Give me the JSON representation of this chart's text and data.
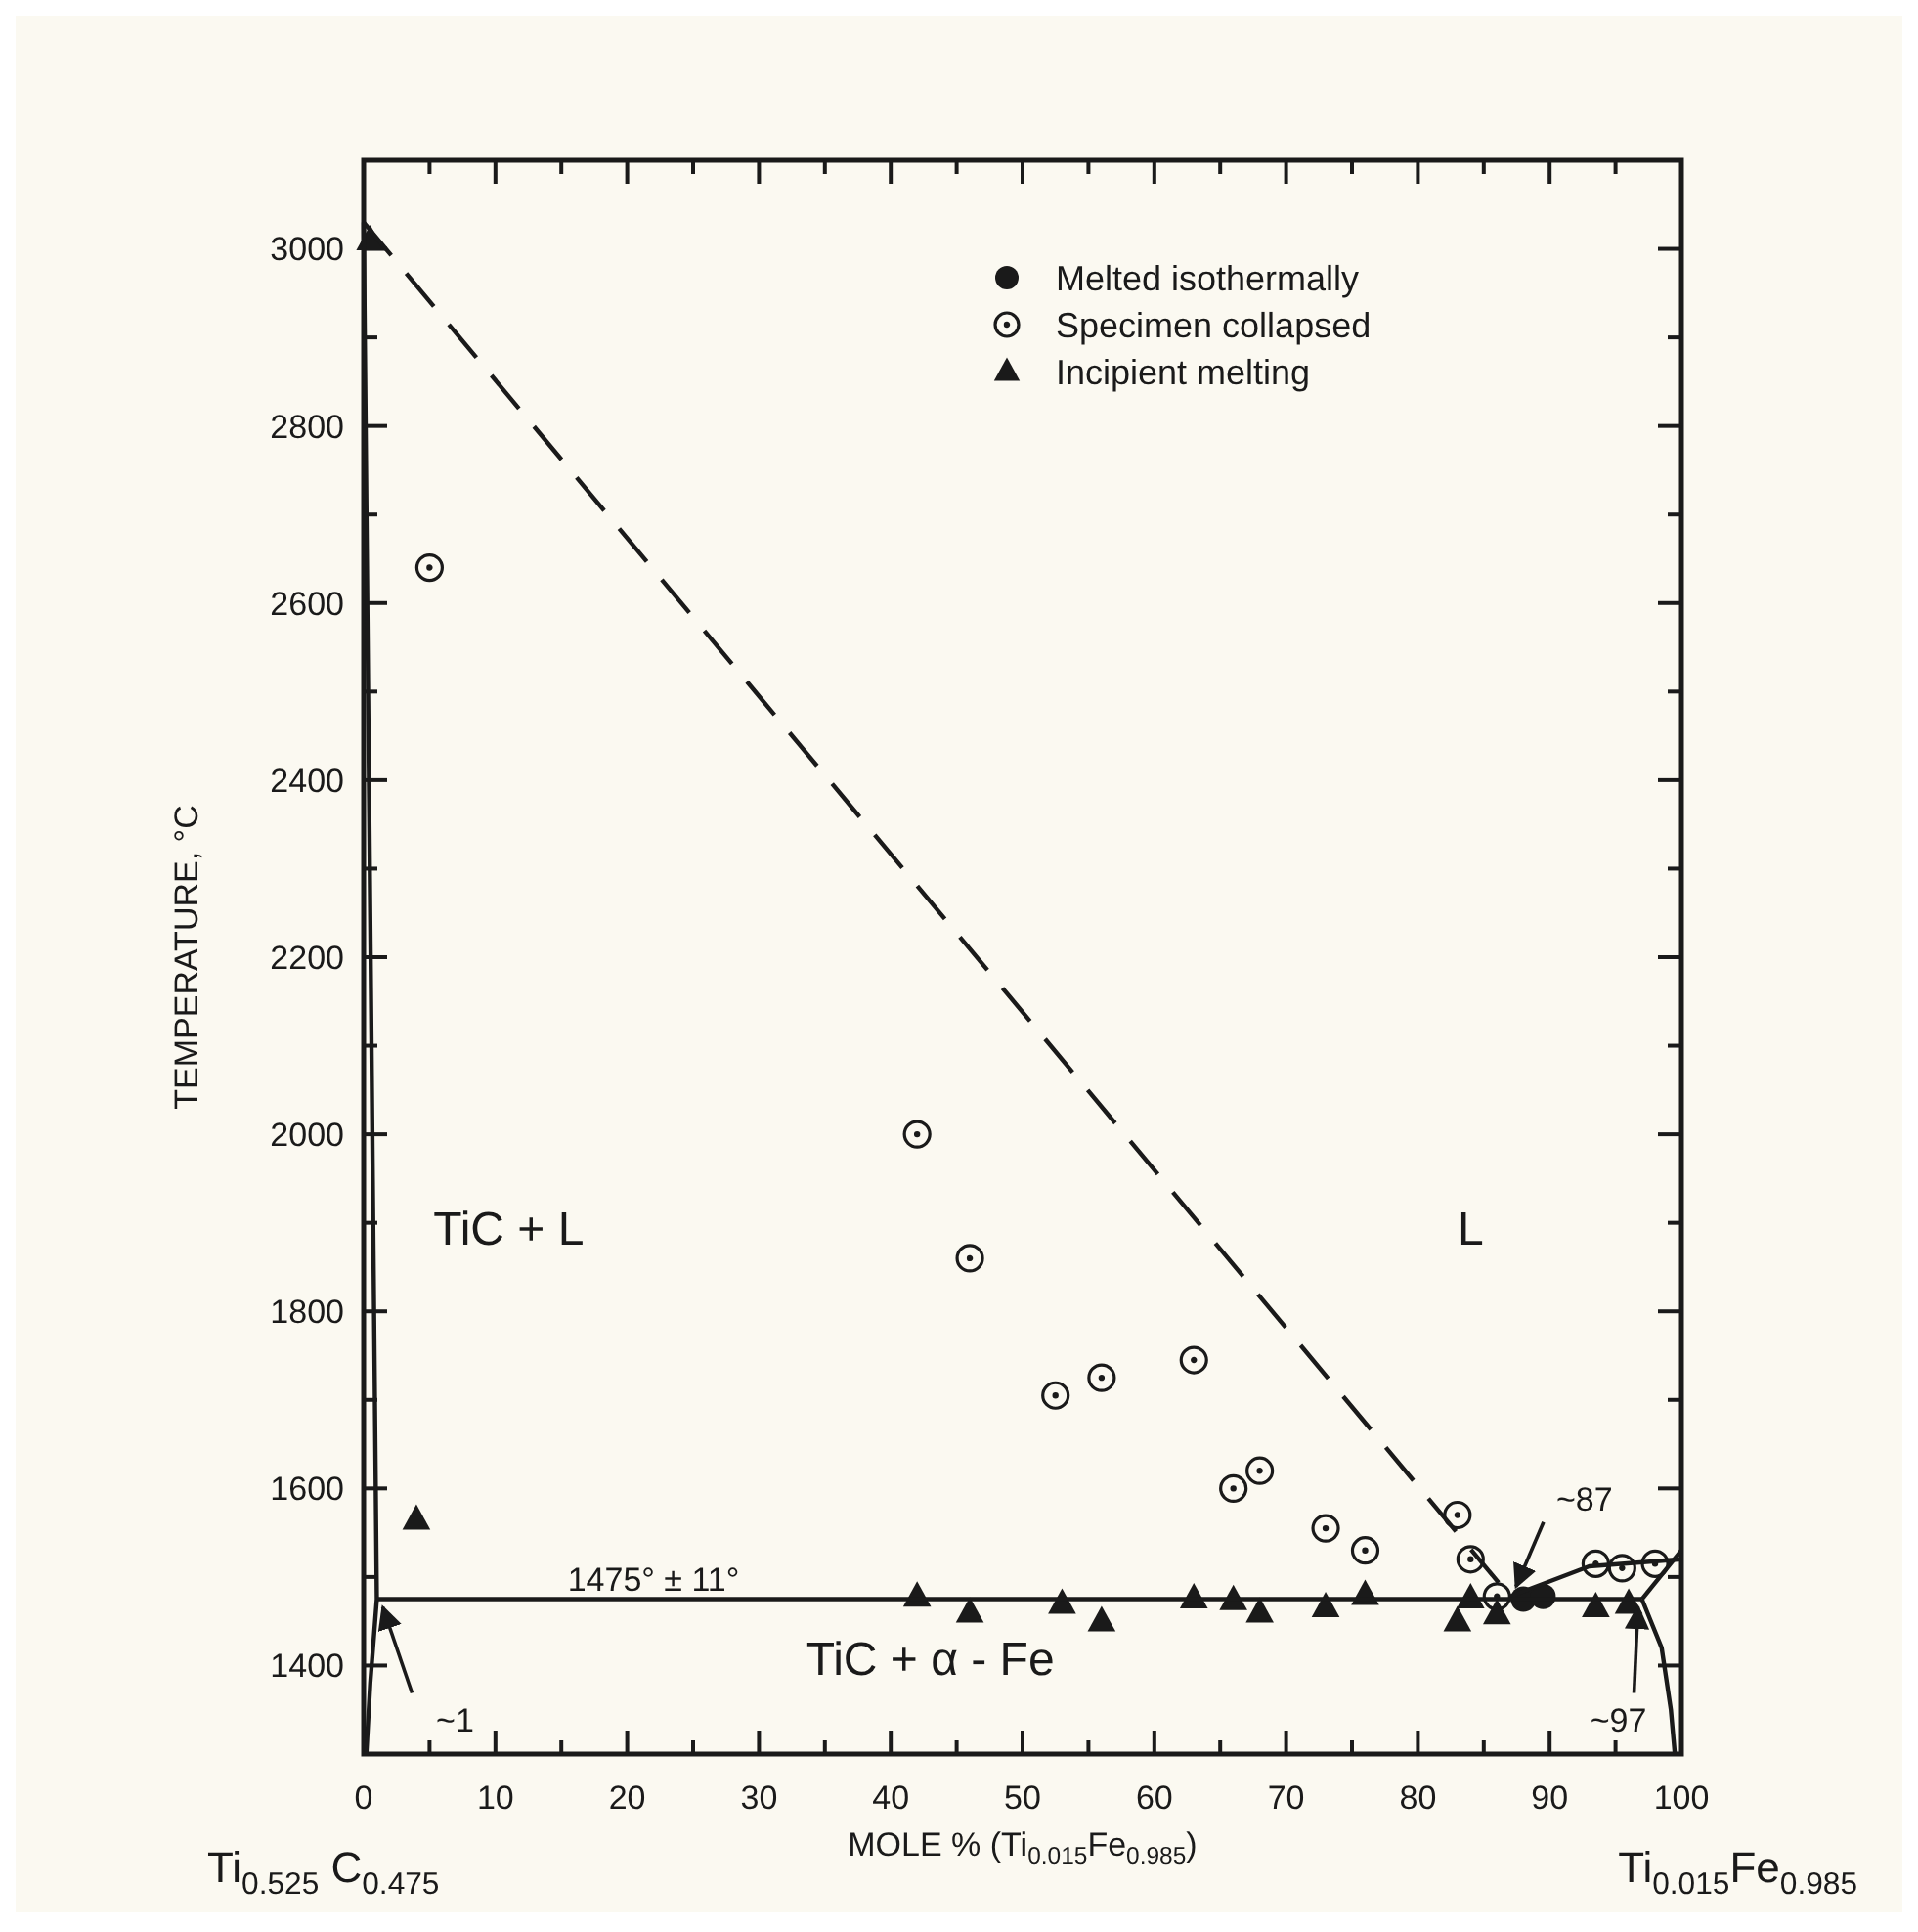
{
  "chart_data": {
    "type": "scatter",
    "xlabel": "MOLE % (Ti$_{0.015}$Fe$_{0.985}$)",
    "ylabel": "TEMPERATURE, °C",
    "xlim": [
      0,
      100
    ],
    "ylim": [
      1300,
      3100
    ],
    "xticks": [
      0,
      {
        "value": 5,
        "label": null
      },
      10,
      {
        "value": 15,
        "label": null
      },
      20,
      {
        "value": 25,
        "label": null
      },
      30,
      {
        "value": 35,
        "label": null
      },
      40,
      {
        "value": 45,
        "label": null
      },
      50,
      {
        "value": 55,
        "label": null
      },
      60,
      {
        "value": 65,
        "label": null
      },
      70,
      {
        "value": 75,
        "label": null
      },
      80,
      {
        "value": 85,
        "label": null
      },
      90,
      {
        "value": 95,
        "label": null
      },
      100
    ],
    "yticks": [
      {
        "value": 1300,
        "label": null
      },
      1400,
      {
        "value": 1500,
        "label": null
      },
      1600,
      {
        "value": 1700,
        "label": null
      },
      1800,
      {
        "value": 1900,
        "label": null
      },
      2000,
      {
        "value": 2100,
        "label": null
      },
      2200,
      {
        "value": 2300,
        "label": null
      },
      2400,
      {
        "value": 2500,
        "label": null
      },
      2600,
      {
        "value": 2700,
        "label": null
      },
      2800,
      {
        "value": 2900,
        "label": null
      },
      3000
    ],
    "grid": false,
    "legend": "top right",
    "series": [
      {
        "name": "Melted isothermally",
        "marker": "circle",
        "color": "#1a1a1a",
        "x": [
          88,
          89.5
        ],
        "values": [
          1475,
          1478
        ]
      },
      {
        "name": "Specimen collapsed",
        "color": "#1a1a1a",
        "x": [
          5,
          42,
          46,
          52.5,
          56,
          63,
          66,
          68,
          73,
          76,
          83,
          84,
          86,
          93.5,
          95.5,
          98
        ],
        "values": [
          2640,
          2000,
          1860,
          1705,
          1725,
          1745,
          1600,
          1620,
          1555,
          1530,
          1570,
          1520,
          1478,
          1515,
          1510,
          1515
        ]
      },
      {
        "name": "Incipient melting",
        "marker": "triangle",
        "color": "#1a1a1a",
        "x": [
          0.5,
          4,
          42,
          46,
          53,
          56,
          63,
          66,
          68,
          73,
          76,
          83,
          84,
          86,
          93.5,
          96
        ],
        "values": [
          3010,
          1565,
          1478,
          1460,
          1470,
          1450,
          1476,
          1474,
          1460,
          1466,
          1480,
          1450,
          1476,
          1458,
          1466,
          1470
        ]
      },
      {
        "type": "line",
        "marker": "none",
        "line_style": "dashed",
        "color": "#1a1a1a",
        "x": [
          0,
          87
        ],
        "values": [
          3030,
          1478
        ]
      },
      {
        "type": "line",
        "marker": "none",
        "line_style": "solid",
        "color": "#1a1a1a",
        "x": [
          87,
          93,
          100
        ],
        "values": [
          1478,
          1512,
          1520
        ]
      },
      {
        "type": "line",
        "marker": "none",
        "line_style": "solid",
        "color": "#1a1a1a",
        "x": [
          1,
          97
        ],
        "values": [
          1475,
          1475
        ]
      },
      {
        "type": "line",
        "marker": "none",
        "line_style": "solid",
        "color": "#1a1a1a",
        "x": [
          97,
          100
        ],
        "values": [
          1475,
          1530
        ]
      },
      {
        "type": "line",
        "marker": "none",
        "line_style": "solid",
        "color": "#1a1a1a",
        "x": [
          97,
          98.5,
          99.2,
          99.5
        ],
        "values": [
          1475,
          1420,
          1350,
          1300
        ]
      },
      {
        "type": "line",
        "marker": "none",
        "line_style": "solid",
        "color": "#1a1a1a",
        "x": [
          0,
          0.4,
          1,
          0.5,
          0.2
        ],
        "values": [
          3030,
          2400,
          1475,
          1380,
          1300
        ]
      }
    ],
    "annotations": [
      "TiC + L",
      "L",
      "TiC + α - Fe",
      {
        "text": "1475° ± 11°",
        "x": 22,
        "y": 1475
      },
      {
        "text": "~1",
        "x": 1,
        "y": 1475
      },
      {
        "text": "~87",
        "x": 87,
        "y": 1478
      },
      {
        "text": "~97",
        "x": 97,
        "y": 1475
      },
      {
        "text": "Ti$_{0.525}$ C$_{0.475}$",
        "x": 0,
        "y": 1300
      },
      {
        "text": "Ti$_{0.015}$Fe$_{0.985}$",
        "x": 100,
        "y": 1300
      }
    ]
  }
}
